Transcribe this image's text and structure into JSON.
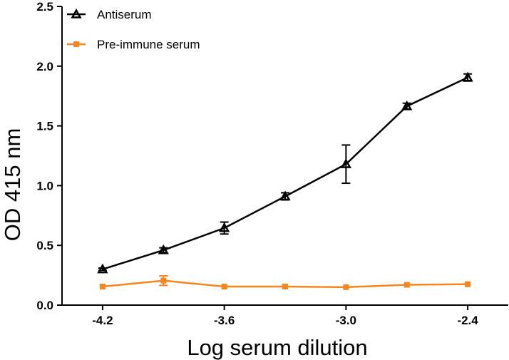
{
  "chart_data": {
    "type": "line",
    "xlabel": "Log serum dilution",
    "ylabel": "OD 415 nm",
    "xlim": [
      -4.4,
      -2.2
    ],
    "ylim": [
      0,
      2.5
    ],
    "xticks": [
      "-4.2",
      "-3.6",
      "-3.0",
      "-2.4"
    ],
    "xtick_values": [
      -4.2,
      -3.6,
      -3.0,
      -2.4
    ],
    "yticks": [
      "0.0",
      "0.5",
      "1.0",
      "1.5",
      "2.0",
      "2.5"
    ],
    "ytick_values": [
      0,
      0.5,
      1.0,
      1.5,
      2.0,
      2.5
    ],
    "grid": false,
    "legend_position": "top-left",
    "series": [
      {
        "name": "Antiserum",
        "color": "#000000",
        "marker": "triangle",
        "x": [
          -4.2,
          -3.9,
          -3.6,
          -3.3,
          -3.0,
          -2.7,
          -2.4
        ],
        "y": [
          0.3,
          0.46,
          0.645,
          0.91,
          1.18,
          1.665,
          1.905
        ],
        "err": [
          0.01,
          0.02,
          0.05,
          0.03,
          0.16,
          0.025,
          0.03
        ]
      },
      {
        "name": "Pre-immune serum",
        "color": "#f5861f",
        "marker": "square",
        "x": [
          -4.2,
          -3.9,
          -3.6,
          -3.3,
          -3.0,
          -2.7,
          -2.4
        ],
        "y": [
          0.155,
          0.205,
          0.155,
          0.155,
          0.15,
          0.17,
          0.175
        ],
        "err": [
          0.005,
          0.04,
          0.005,
          0.005,
          0.005,
          0.005,
          0.005
        ]
      }
    ]
  }
}
